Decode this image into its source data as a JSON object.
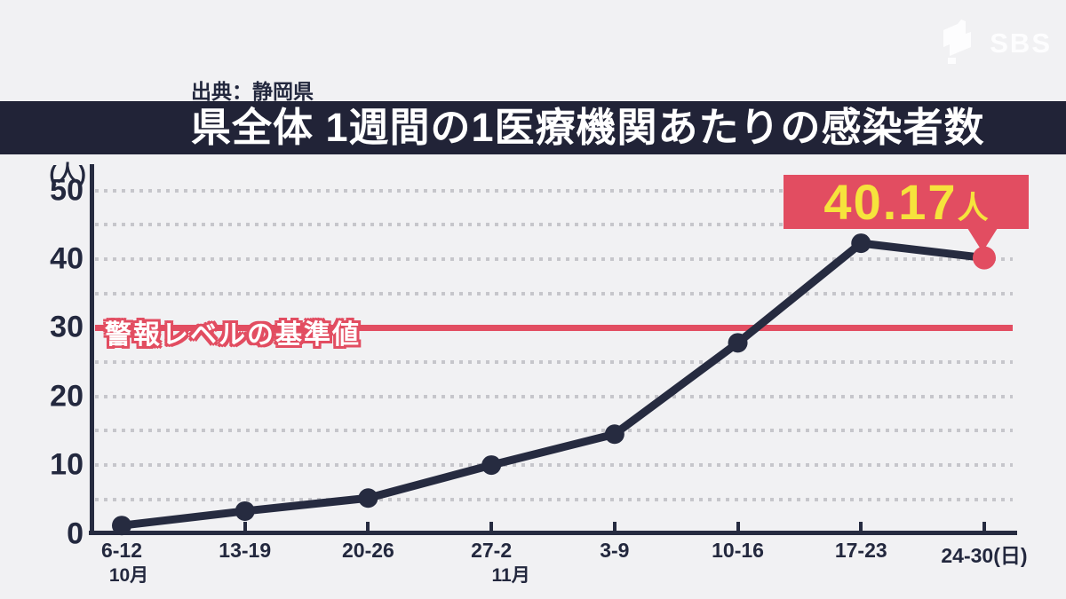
{
  "logo": {
    "text": "SBS"
  },
  "source": "出典：静岡県",
  "annotation": {
    "value": "40.17",
    "unit": "人"
  },
  "chart_data": {
    "type": "line",
    "title": "県全体 1週間の1医療機関あたりの感染者数",
    "unit_label": "(人)",
    "categories": [
      "6-12",
      "13-19",
      "20-26",
      "27-2",
      "3-9",
      "10-16",
      "17-23",
      "24-30(日)"
    ],
    "month_labels": [
      "10月",
      "",
      "",
      "11月",
      "",
      "",
      "",
      ""
    ],
    "values": [
      1.2,
      3.3,
      5.2,
      10,
      14.5,
      27.8,
      42.3,
      40.17
    ],
    "highlight_point_index": 7,
    "highlight_point_label": "40.17人",
    "threshold": {
      "value": 30,
      "label": "警報レベルの基準値"
    },
    "ylim": [
      0,
      50
    ],
    "y_ticks": [
      0,
      10,
      20,
      30,
      40,
      50
    ],
    "gridline_values": [
      5,
      10,
      15,
      20,
      25,
      35,
      40,
      45,
      50
    ],
    "grid": "dotted",
    "colors": {
      "line": "#262b40",
      "highlight": "#e24d61",
      "threshold_line": "#e24d61",
      "annotation_bg": "#e24d61",
      "annotation_text": "#f6e33c",
      "banner_bg": "#212337",
      "banner_text": "#ffffff",
      "background": "#f1f1f3"
    }
  }
}
